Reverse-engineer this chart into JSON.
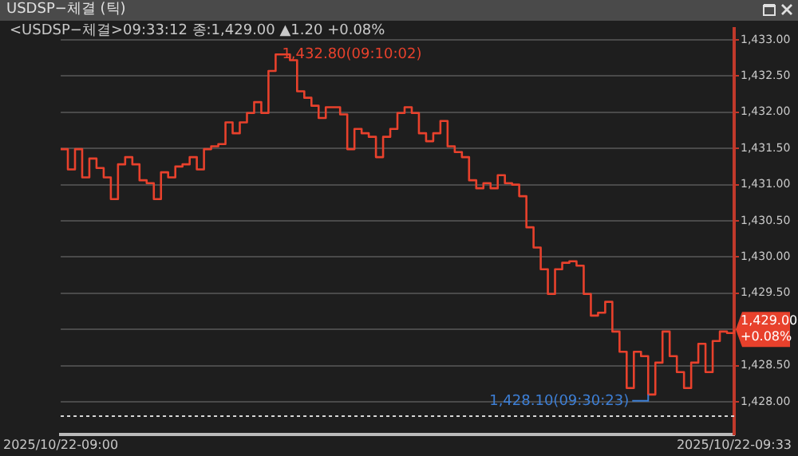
{
  "chart_data": {
    "type": "step",
    "title": "USDSP−체결 (틱)",
    "subtitle": "<USDSP−체결>09:33:12 종:1,429.00 ▲1.20 +0.08%",
    "categories": [
      "2025/10/22-09:00",
      null,
      null,
      null,
      null,
      null,
      null,
      null,
      null,
      null,
      null,
      null,
      null,
      null,
      null,
      null,
      null,
      null,
      null,
      null,
      null,
      null,
      null,
      null,
      null,
      null,
      null,
      null,
      null,
      null,
      null,
      null,
      null,
      null,
      null,
      null,
      null,
      null,
      null,
      null,
      null,
      null,
      null,
      null,
      null,
      null,
      null,
      null,
      null,
      null,
      null,
      null,
      null,
      null,
      null,
      null,
      null,
      null,
      null,
      null,
      null,
      null,
      null,
      null,
      null,
      null,
      null,
      null,
      null,
      null,
      null,
      null,
      null,
      null,
      null,
      null,
      null,
      null,
      null,
      null,
      null,
      null,
      null,
      null,
      null,
      null,
      null,
      null,
      null,
      null,
      null,
      null,
      null,
      null,
      "2025/10/22-09:33"
    ],
    "series": [
      {
        "color": "#e8412c",
        "values": [
          1431.49,
          1431.21,
          1431.49,
          1431.1,
          1431.36,
          1431.23,
          1431.1,
          1430.8,
          1431.28,
          1431.38,
          1431.28,
          1431.06,
          1431.02,
          1430.8,
          1431.17,
          1431.1,
          1431.25,
          1431.28,
          1431.38,
          1431.21,
          1431.49,
          1431.53,
          1431.56,
          1431.86,
          1431.71,
          1431.86,
          1431.99,
          1432.14,
          1431.99,
          1432.57,
          1432.8,
          1432.8,
          1432.72,
          1432.29,
          1432.2,
          1432.09,
          1431.92,
          1432.07,
          1432.07,
          1431.97,
          1431.49,
          1431.77,
          1431.71,
          1431.66,
          1431.38,
          1431.66,
          1431.77,
          1431.99,
          1432.07,
          1431.99,
          1431.71,
          1431.6,
          1431.71,
          1431.88,
          1431.53,
          1431.45,
          1431.38,
          1431.06,
          1430.95,
          1431.02,
          1430.95,
          1431.13,
          1431.02,
          1431.0,
          1430.84,
          1430.41,
          1430.13,
          1429.83,
          1429.49,
          1429.83,
          1429.92,
          1429.94,
          1429.88,
          1429.49,
          1429.19,
          1429.23,
          1429.38,
          1428.97,
          1428.69,
          1428.19,
          1428.69,
          1428.63,
          1428.1,
          1428.54,
          1428.97,
          1428.63,
          1428.41,
          1428.19,
          1428.54,
          1428.8,
          1428.41,
          1428.84,
          1428.97,
          1428.95,
          1429.0
        ]
      }
    ],
    "ylim": [
      1427.55,
      1433.15
    ],
    "yticks": [
      {
        "value": 1428,
        "label": "1,428.00"
      },
      {
        "value": 1428.5,
        "label": "1,428.50"
      },
      {
        "value": 1429,
        "label": null
      },
      {
        "value": 1429.5,
        "label": "1,429.50"
      },
      {
        "value": 1430,
        "label": "1,430.00"
      },
      {
        "value": 1430.5,
        "label": "1,430.50"
      },
      {
        "value": 1431,
        "label": "1,431.00"
      },
      {
        "value": 1431.5,
        "label": "1,431.50"
      },
      {
        "value": 1432,
        "label": "1,432.00"
      },
      {
        "value": 1432.5,
        "label": "1,432.50"
      },
      {
        "value": 1433,
        "label": "1,433.00"
      }
    ],
    "grid": "y",
    "legend": false,
    "marker": "none",
    "line_style": "solid",
    "ref_lines": [
      {
        "axis": "y",
        "value": 1427.8,
        "color": "#d8d8d8",
        "line_style": "dotted"
      }
    ],
    "annotations": [
      "1,432.80(09:10:02)",
      "1,428.10(09:30:23)",
      "1,429.00 +0.08%"
    ]
  }
}
